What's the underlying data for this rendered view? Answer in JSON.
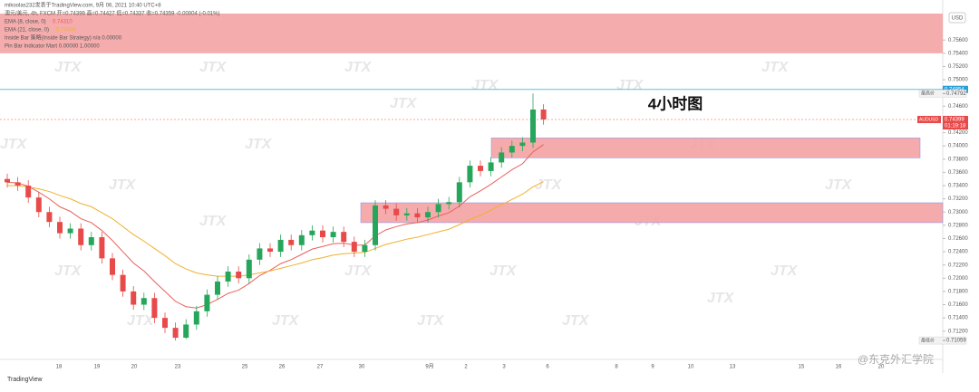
{
  "header": {
    "lines": [
      "mikoolas232发表于TradingView.com, 9月 06, 2021 10:40 UTC+8",
      "澳元/美元, 4h, FXCM 开=0.74399 高=0.74427 低=0.74337 收=0.74359 -0.00004 (-0.01%)"
    ],
    "legend_values": [
      "0.74310",
      "0.74088"
    ],
    "extra_lines": [
      "Inside Bar 策略(Inside Bar Strategy) n/a 0.00000",
      "Pin Bar Indicator Mart 0.00000 1.00000"
    ],
    "logo": "TradingView",
    "watermark": "JTX",
    "credit": "@东克外汇学院"
  },
  "chart_data": {
    "type": "candlestick",
    "annotation": "4小时图",
    "currency": "USD",
    "open": [
      0.735,
      0.7345,
      0.734,
      0.7322,
      0.73,
      0.7285,
      0.7268,
      0.7275,
      0.725,
      0.7262,
      0.723,
      0.7205,
      0.718,
      0.716,
      0.717,
      0.714,
      0.7125,
      0.711,
      0.713,
      0.715,
      0.7175,
      0.7195,
      0.721,
      0.72,
      0.7228,
      0.7245,
      0.724,
      0.7258,
      0.725,
      0.7265,
      0.7272,
      0.7262,
      0.727,
      0.7255,
      0.724,
      0.725,
      0.731,
      0.7305,
      0.7295,
      0.7298,
      0.7292,
      0.73,
      0.7312,
      0.7315,
      0.7345,
      0.737,
      0.7362,
      0.7375,
      0.739,
      0.74,
      0.7405,
      0.7455
    ],
    "high": [
      0.7358,
      0.7353,
      0.7348,
      0.733,
      0.7308,
      0.7293,
      0.7283,
      0.7283,
      0.727,
      0.727,
      0.7238,
      0.7213,
      0.7188,
      0.7178,
      0.7178,
      0.7148,
      0.7133,
      0.7138,
      0.7158,
      0.7183,
      0.7203,
      0.7218,
      0.7218,
      0.7236,
      0.7253,
      0.7253,
      0.7266,
      0.7266,
      0.7273,
      0.728,
      0.728,
      0.7278,
      0.7278,
      0.7263,
      0.7258,
      0.7318,
      0.7318,
      0.7313,
      0.7306,
      0.7306,
      0.7308,
      0.732,
      0.7323,
      0.7353,
      0.7378,
      0.7378,
      0.7383,
      0.7398,
      0.7408,
      0.7413,
      0.74792,
      0.7463
    ],
    "low": [
      0.7337,
      0.7332,
      0.7314,
      0.7292,
      0.7277,
      0.726,
      0.726,
      0.7242,
      0.7242,
      0.7222,
      0.7197,
      0.7172,
      0.7152,
      0.7152,
      0.7132,
      0.7117,
      0.71059,
      0.7108,
      0.7122,
      0.7142,
      0.7167,
      0.7187,
      0.7192,
      0.7192,
      0.722,
      0.7232,
      0.7232,
      0.7242,
      0.7242,
      0.7257,
      0.7254,
      0.7254,
      0.7247,
      0.7232,
      0.7232,
      0.7242,
      0.7297,
      0.7287,
      0.7287,
      0.7284,
      0.7284,
      0.7292,
      0.7304,
      0.7307,
      0.7337,
      0.7354,
      0.7354,
      0.7367,
      0.7382,
      0.7392,
      0.7397,
      0.7432
    ],
    "close": [
      0.7345,
      0.734,
      0.7322,
      0.73,
      0.7285,
      0.7268,
      0.7275,
      0.725,
      0.7262,
      0.723,
      0.7205,
      0.718,
      0.716,
      0.717,
      0.714,
      0.7125,
      0.711,
      0.713,
      0.715,
      0.7175,
      0.7195,
      0.721,
      0.72,
      0.7228,
      0.7245,
      0.724,
      0.7258,
      0.725,
      0.7265,
      0.7272,
      0.7262,
      0.727,
      0.7255,
      0.724,
      0.725,
      0.731,
      0.7305,
      0.7295,
      0.7298,
      0.7292,
      0.73,
      0.7312,
      0.7315,
      0.7345,
      0.737,
      0.7362,
      0.7375,
      0.739,
      0.74,
      0.7405,
      0.7455,
      0.744
    ],
    "up_color": "#26a65b",
    "down_color": "#e84a4a",
    "series": [
      {
        "name": "EMA (8, close, 0)",
        "color": "#e8605a",
        "values": [
          0.7345,
          0.7344,
          0.7339,
          0.733,
          0.732,
          0.7308,
          0.7301,
          0.729,
          0.7284,
          0.7272,
          0.7257,
          0.724,
          0.7223,
          0.7211,
          0.7195,
          0.718,
          0.7165,
          0.7157,
          0.7155,
          0.716,
          0.7168,
          0.7177,
          0.7182,
          0.7192,
          0.7204,
          0.7212,
          0.7222,
          0.7228,
          0.7236,
          0.7244,
          0.7248,
          0.7252,
          0.7253,
          0.725,
          0.725,
          0.7264,
          0.7273,
          0.7278,
          0.7282,
          0.7284,
          0.7288,
          0.7294,
          0.7299,
          0.7309,
          0.7323,
          0.7332,
          0.7342,
          0.7353,
          0.7364,
          0.7373,
          0.7391,
          0.7402
        ]
      },
      {
        "name": "EMA (21, close, 0)",
        "color": "#f0b030",
        "values": [
          0.734,
          0.734,
          0.7338,
          0.7335,
          0.7331,
          0.7325,
          0.732,
          0.7313,
          0.7308,
          0.7299,
          0.729,
          0.7278,
          0.7266,
          0.7256,
          0.7245,
          0.7234,
          0.7222,
          0.7214,
          0.7208,
          0.7205,
          0.7203,
          0.7203,
          0.7203,
          0.7205,
          0.7208,
          0.7211,
          0.7215,
          0.7219,
          0.7223,
          0.7228,
          0.7231,
          0.7235,
          0.7237,
          0.7238,
          0.7239,
          0.7245,
          0.7251,
          0.7255,
          0.7259,
          0.7262,
          0.7266,
          0.727,
          0.7274,
          0.7281,
          0.7289,
          0.7295,
          0.7303,
          0.7311,
          0.7319,
          0.7327,
          0.7338,
          0.7346
        ]
      }
    ],
    "zones": [
      {
        "from": 0.754,
        "to": 0.76
      },
      {
        "from": 0.7382,
        "to": 0.7412
      },
      {
        "from": 0.7284,
        "to": 0.7314
      }
    ],
    "ylim": [
      0.708,
      0.76
    ],
    "yticks": [
      {
        "value": 0.712,
        "label": "0.71200"
      },
      {
        "value": 0.714,
        "label": "0.71400"
      },
      {
        "value": 0.716,
        "label": "0.71600"
      },
      {
        "value": 0.718,
        "label": "0.71800"
      },
      {
        "value": 0.72,
        "label": "0.72000"
      },
      {
        "value": 0.722,
        "label": "0.72200"
      },
      {
        "value": 0.724,
        "label": "0.72400"
      },
      {
        "value": 0.726,
        "label": "0.72600"
      },
      {
        "value": 0.728,
        "label": "0.72800"
      },
      {
        "value": 0.73,
        "label": "0.73000"
      },
      {
        "value": 0.732,
        "label": "0.73200"
      },
      {
        "value": 0.734,
        "label": "0.73400"
      },
      {
        "value": 0.736,
        "label": "0.73600"
      },
      {
        "value": 0.738,
        "label": "0.73800"
      },
      {
        "value": 0.74,
        "label": "0.74000"
      },
      {
        "value": 0.742,
        "label": "0.74200"
      },
      {
        "value": 0.746,
        "label": "0.74600"
      },
      {
        "value": 0.75,
        "label": "0.75000"
      },
      {
        "value": 0.752,
        "label": "0.75200"
      },
      {
        "value": 0.754,
        "label": "0.75400"
      },
      {
        "value": 0.756,
        "label": "0.75600"
      }
    ],
    "line_level": {
      "value": 0.74854,
      "label": "0.74854"
    },
    "high_level": {
      "name": "最高价",
      "value": 0.74792,
      "label": "0.74792"
    },
    "current": {
      "name": "AUDUSD",
      "value": 0.74399,
      "label": "0.74399",
      "countdown": "01:19:18"
    },
    "low_level": {
      "name": "最低价",
      "value": 0.71059,
      "label": "0.71059"
    },
    "xlabels": [
      "18",
      "19",
      "20",
      "23",
      "25",
      "26",
      "27",
      "30",
      "9月",
      "2",
      "3",
      "6",
      "8",
      "9",
      "10",
      "13",
      "15",
      "16",
      "20"
    ]
  }
}
